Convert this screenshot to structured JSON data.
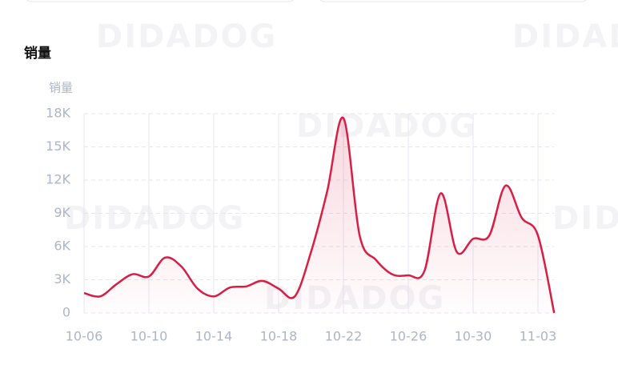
{
  "chart_data": {
    "type": "line",
    "title": "销量",
    "y_label": "销量",
    "watermark": "DIDADOG",
    "categories": [
      "10-06",
      null,
      null,
      null,
      "10-10",
      null,
      null,
      null,
      "10-14",
      null,
      null,
      null,
      "10-18",
      null,
      null,
      null,
      "10-22",
      null,
      null,
      null,
      "10-26",
      null,
      null,
      null,
      "10-30",
      null,
      null,
      null,
      "11-03",
      null
    ],
    "series": [
      {
        "name": "销量",
        "color": "#d81e45",
        "values": [
          1800,
          1500,
          2600,
          3500,
          3300,
          5000,
          4200,
          2200,
          1500,
          2300,
          2400,
          2900,
          2200,
          1500,
          5500,
          11000,
          17600,
          7000,
          4800,
          3500,
          3400,
          3800,
          10800,
          5500,
          6700,
          7000,
          11500,
          8600,
          7000,
          0
        ]
      }
    ],
    "ylim": [
      0,
      18000
    ],
    "yticks": [
      0,
      {
        "value": 3000,
        "label": "3K"
      },
      {
        "value": 6000,
        "label": "6K"
      },
      {
        "value": 9000,
        "label": "9K"
      },
      {
        "value": 12000,
        "label": "12K"
      },
      {
        "value": 15000,
        "label": "15K"
      },
      {
        "value": 18000,
        "label": "18K"
      }
    ],
    "grid": true
  }
}
